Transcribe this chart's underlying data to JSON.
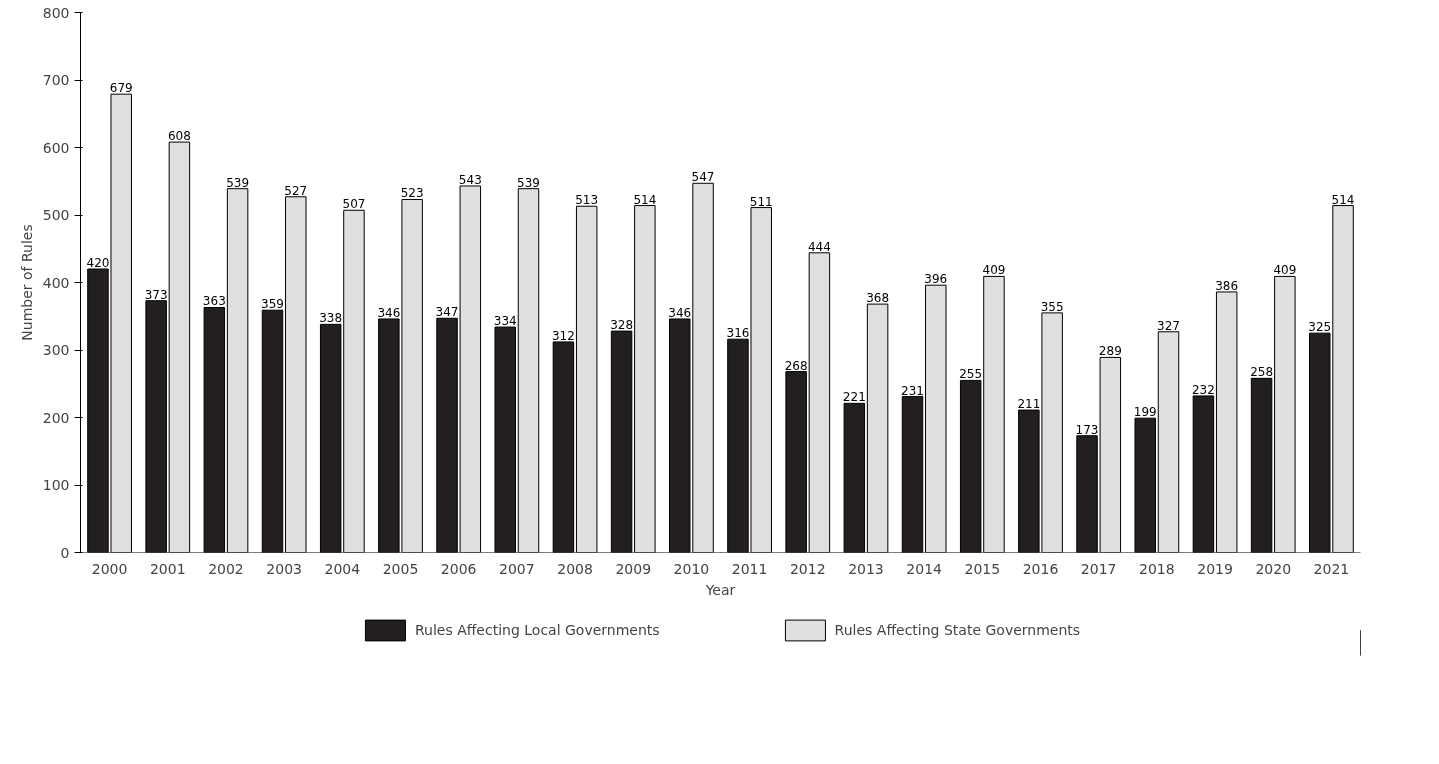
{
  "chart_data": {
    "type": "bar",
    "xlabel": "Year",
    "ylabel": "Number of Rules",
    "categories": [
      "2000",
      "2001",
      "2002",
      "2003",
      "2004",
      "2005",
      "2006",
      "2007",
      "2008",
      "2009",
      "2010",
      "2011",
      "2012",
      "2013",
      "2014",
      "2015",
      "2016",
      "2017",
      "2018",
      "2019",
      "2020",
      "2021"
    ],
    "series": [
      {
        "name": "Rules Affecting Local Governments",
        "color": "#231f20",
        "values": [
          420,
          373,
          363,
          359,
          338,
          346,
          347,
          334,
          312,
          328,
          346,
          316,
          268,
          221,
          231,
          255,
          211,
          173,
          199,
          232,
          258,
          325
        ]
      },
      {
        "name": "Rules Affecting State Governments",
        "color": "#e0e0e2",
        "values": [
          679,
          608,
          539,
          527,
          507,
          523,
          543,
          539,
          513,
          514,
          547,
          511,
          444,
          368,
          396,
          409,
          355,
          289,
          327,
          386,
          409,
          514
        ]
      }
    ],
    "ylim": [
      0,
      800
    ],
    "yticks": [
      0,
      100,
      200,
      300,
      400,
      500,
      600,
      700,
      800
    ],
    "grid": false,
    "legend": "bottom",
    "data_labels": true
  }
}
